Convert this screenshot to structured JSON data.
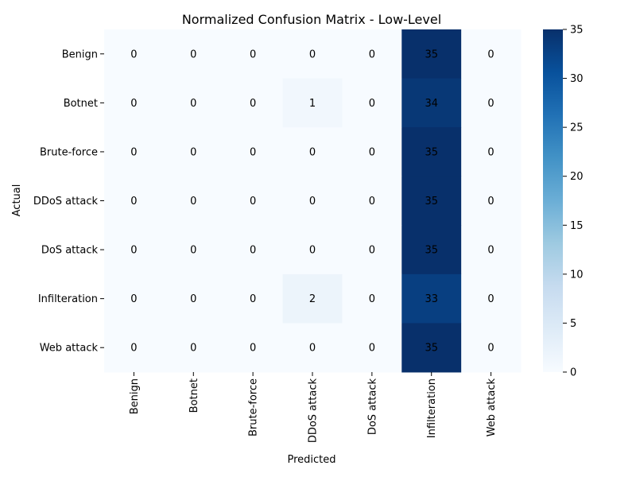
{
  "chart_data": {
    "type": "heatmap",
    "title": "Normalized Confusion Matrix - Low-Level",
    "xlabel": "Predicted",
    "ylabel": "Actual",
    "x_categories": [
      "Benign",
      "Botnet",
      "Brute-force",
      "DDoS attack",
      "DoS attack",
      "Infilteration",
      "Web attack"
    ],
    "y_categories": [
      "Benign",
      "Botnet",
      "Brute-force",
      "DDoS attack",
      "DoS attack",
      "Infilteration",
      "Web attack"
    ],
    "values": [
      [
        0,
        0,
        0,
        0,
        0,
        35,
        0
      ],
      [
        0,
        0,
        0,
        1,
        0,
        34,
        0
      ],
      [
        0,
        0,
        0,
        0,
        0,
        35,
        0
      ],
      [
        0,
        0,
        0,
        0,
        0,
        35,
        0
      ],
      [
        0,
        0,
        0,
        0,
        0,
        35,
        0
      ],
      [
        0,
        0,
        0,
        2,
        0,
        33,
        0
      ],
      [
        0,
        0,
        0,
        0,
        0,
        35,
        0
      ]
    ],
    "colorbar": {
      "range": [
        0,
        35
      ],
      "ticks": [
        0,
        5,
        10,
        15,
        20,
        25,
        30,
        35
      ],
      "colormap": "Blues",
      "low_color": "#f7fbff",
      "high_color": "#08306b"
    },
    "annotations": true
  }
}
